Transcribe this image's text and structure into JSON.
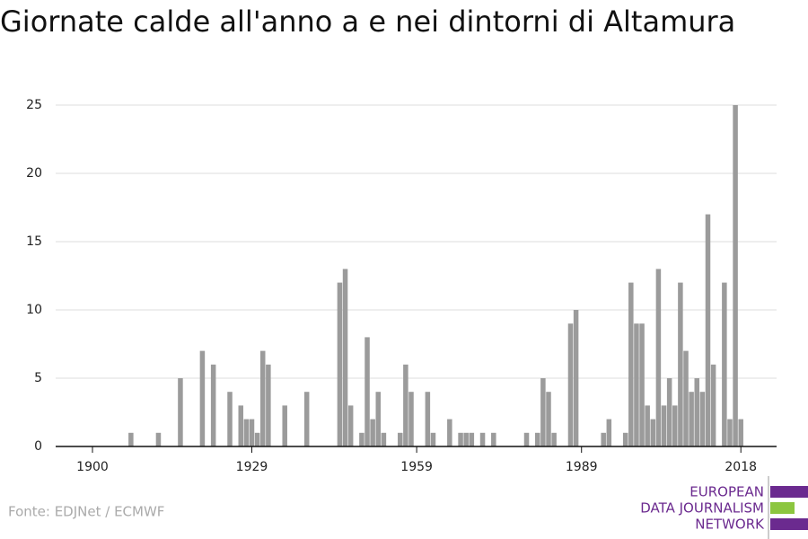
{
  "chart_data": {
    "type": "bar",
    "title": "Giornate calde all'anno a e nei dintorni di Altamura",
    "x": [
      1907,
      1912,
      1916,
      1920,
      1922,
      1925,
      1927,
      1928,
      1929,
      1930,
      1931,
      1932,
      1935,
      1939,
      1945,
      1946,
      1947,
      1949,
      1950,
      1951,
      1952,
      1953,
      1956,
      1957,
      1958,
      1961,
      1962,
      1965,
      1967,
      1968,
      1969,
      1971,
      1973,
      1979,
      1981,
      1982,
      1983,
      1984,
      1987,
      1988,
      1993,
      1994,
      1997,
      1998,
      1999,
      2000,
      2001,
      2002,
      2003,
      2004,
      2005,
      2006,
      2007,
      2008,
      2009,
      2010,
      2011,
      2012,
      2013,
      2015,
      2016,
      2017,
      2018
    ],
    "values": [
      1,
      1,
      5,
      7,
      6,
      4,
      3,
      2,
      2,
      1,
      7,
      6,
      3,
      4,
      12,
      13,
      3,
      1,
      8,
      2,
      4,
      1,
      1,
      6,
      4,
      4,
      1,
      2,
      1,
      1,
      1,
      1,
      1,
      1,
      1,
      5,
      4,
      1,
      9,
      10,
      1,
      2,
      1,
      12,
      9,
      9,
      3,
      2,
      13,
      3,
      5,
      3,
      12,
      7,
      4,
      5,
      4,
      17,
      6,
      12,
      2,
      25,
      2
    ],
    "color": "#9b9b9b",
    "xlim": [
      1893.3,
      2024.5
    ],
    "xticks": [
      1900,
      1929,
      1959,
      1989,
      2018
    ],
    "ylim": [
      0,
      25
    ],
    "yticks": [
      0,
      5,
      10,
      15,
      20,
      25
    ],
    "grid": true
  },
  "footer": {
    "source": "Fonte: EDJNet / ECMWF",
    "logo": [
      "EUROPEAN",
      "DATA JOURNALISM",
      "NETWORK"
    ]
  }
}
